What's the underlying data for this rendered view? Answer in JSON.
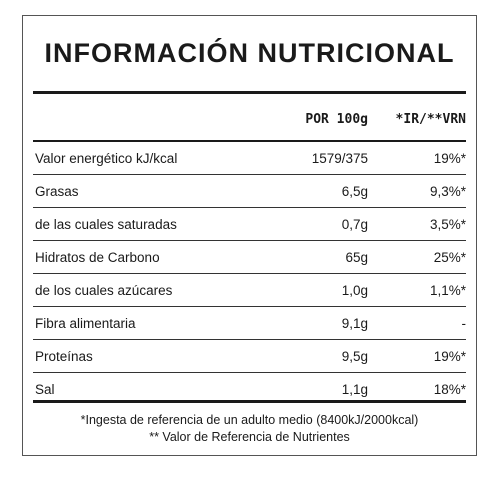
{
  "title": "INFORMACIÓN NUTRICIONAL",
  "columns": {
    "per_100g": "POR 100g",
    "ir_vrn": "*IR/**VRN"
  },
  "rows": [
    {
      "name": "Valor energético kJ/kcal",
      "value": "1579/375",
      "ir": "19%*"
    },
    {
      "name": "Grasas",
      "value": "6,5g",
      "ir": "9,3%*"
    },
    {
      "name": "de las cuales saturadas",
      "value": "0,7g",
      "ir": "3,5%*"
    },
    {
      "name": "Hidratos de Carbono",
      "value": "65g",
      "ir": "25%*"
    },
    {
      "name": "de los cuales azúcares",
      "value": "1,0g",
      "ir": "1,1%*"
    },
    {
      "name": "Fibra alimentaria",
      "value": "9,1g",
      "ir": "-"
    },
    {
      "name": "Proteínas",
      "value": "9,5g",
      "ir": "19%*"
    },
    {
      "name": "Sal",
      "value": "1,1g",
      "ir": "18%*"
    }
  ],
  "footnotes": {
    "line1": "*Ingesta de referencia de un adulto medio (8400kJ/2000kcal)",
    "line2": "** Valor de Referencia de Nutrientes"
  }
}
